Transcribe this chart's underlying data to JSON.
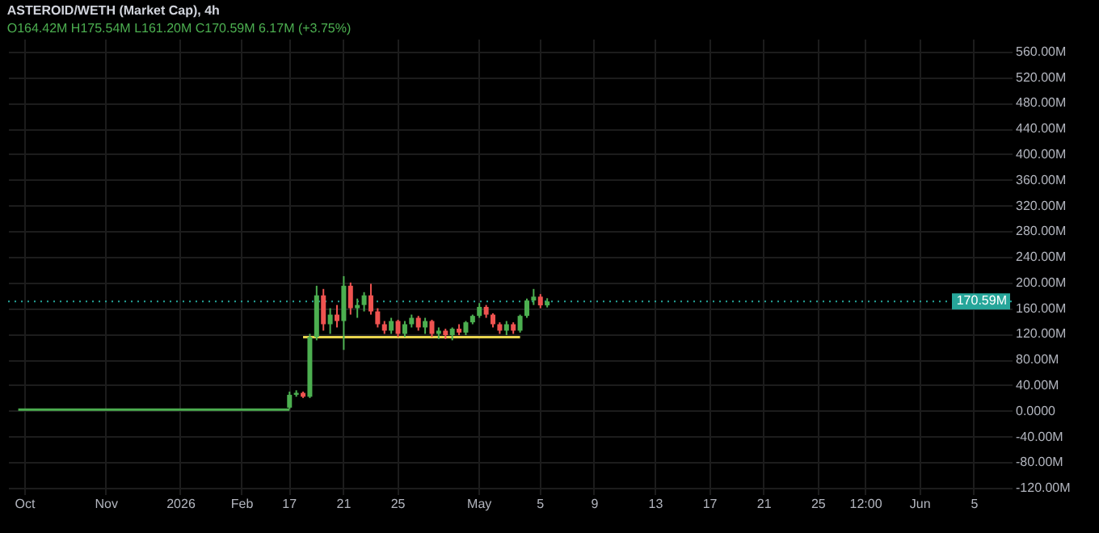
{
  "chart_data": {
    "type": "candlestick",
    "title": "ASTEROID/WETH (Market Cap), 4h",
    "annotations": [
      "O164.42M H175.54M L161.20M C170.59M 6.17M (+3.75%)"
    ],
    "categories": [
      null,
      null,
      "Oct",
      null,
      null,
      null,
      null,
      null,
      null,
      null,
      null,
      null,
      null,
      null,
      "Nov",
      null,
      null,
      null,
      null,
      null,
      null,
      null,
      null,
      null,
      null,
      "2026",
      null,
      null,
      null,
      null,
      null,
      null,
      null,
      null,
      "Feb",
      null,
      null,
      null,
      null,
      null,
      null,
      "17",
      null,
      null,
      null,
      null,
      null,
      null,
      null,
      "21",
      null,
      null,
      null,
      null,
      null,
      null,
      null,
      "25",
      null,
      null,
      null,
      null,
      null,
      null,
      null,
      null,
      null,
      null,
      null,
      "May",
      null,
      null,
      null,
      null,
      null,
      null,
      null,
      null,
      "5",
      null,
      null,
      null,
      null,
      null,
      null,
      null,
      "9",
      null,
      null,
      null,
      null,
      null,
      null,
      null,
      null,
      "13",
      null,
      null,
      null,
      null,
      null,
      null,
      null,
      "17",
      null,
      null,
      null,
      null,
      null,
      null,
      null,
      "21",
      null,
      null,
      null,
      null,
      null,
      null,
      null,
      "25",
      null,
      null,
      null,
      null,
      null,
      null,
      "12:00",
      null,
      null,
      null,
      null,
      null,
      null,
      null,
      "Jun",
      null,
      null,
      null,
      null,
      null,
      null,
      null,
      "5",
      null,
      null,
      null,
      null,
      null
    ],
    "ohlc": [
      null,
      null,
      null,
      null,
      null,
      null,
      null,
      null,
      null,
      null,
      null,
      null,
      null,
      null,
      null,
      null,
      null,
      null,
      null,
      null,
      null,
      null,
      null,
      null,
      null,
      null,
      null,
      null,
      null,
      null,
      null,
      null,
      null,
      null,
      null,
      null,
      null,
      null,
      null,
      null,
      null,
      [
        5,
        30,
        3,
        25
      ],
      [
        25,
        32,
        22,
        28
      ],
      [
        28,
        30,
        20,
        22
      ],
      [
        22,
        120,
        20,
        115
      ],
      [
        115,
        195,
        110,
        180
      ],
      [
        180,
        190,
        125,
        135
      ],
      [
        135,
        160,
        120,
        150
      ],
      [
        150,
        165,
        130,
        140
      ],
      [
        140,
        210,
        95,
        195
      ],
      [
        195,
        200,
        150,
        160
      ],
      [
        160,
        175,
        145,
        165
      ],
      [
        165,
        185,
        155,
        180
      ],
      [
        180,
        198,
        150,
        155
      ],
      [
        155,
        160,
        130,
        135
      ],
      [
        135,
        140,
        120,
        125
      ],
      [
        125,
        145,
        120,
        140
      ],
      [
        140,
        142,
        115,
        120
      ],
      [
        120,
        140,
        115,
        135
      ],
      [
        135,
        150,
        130,
        145
      ],
      [
        145,
        148,
        125,
        130
      ],
      [
        130,
        145,
        120,
        140
      ],
      [
        140,
        142,
        115,
        120
      ],
      [
        120,
        130,
        112,
        125
      ],
      [
        125,
        128,
        112,
        118
      ],
      [
        118,
        130,
        110,
        128
      ],
      [
        128,
        135,
        118,
        122
      ],
      [
        122,
        140,
        118,
        138
      ],
      [
        138,
        150,
        135,
        148
      ],
      [
        148,
        168,
        145,
        162
      ],
      [
        162,
        165,
        145,
        150
      ],
      [
        150,
        152,
        130,
        135
      ],
      [
        135,
        138,
        120,
        125
      ],
      [
        125,
        140,
        118,
        135
      ],
      [
        135,
        138,
        120,
        125
      ],
      [
        125,
        150,
        122,
        148
      ],
      [
        148,
        175,
        145,
        172
      ],
      [
        172,
        190,
        165,
        178
      ],
      [
        178,
        182,
        160,
        164.42
      ],
      [
        164.42,
        175.54,
        161.2,
        170.59
      ],
      null,
      null,
      null,
      null,
      null,
      null,
      null,
      null,
      null,
      null,
      null,
      null,
      null,
      null,
      null,
      null,
      null,
      null,
      null,
      null,
      null,
      null,
      null,
      null,
      null,
      null,
      null,
      null,
      null,
      null,
      null,
      null,
      null,
      null,
      null,
      null,
      null,
      null,
      null,
      null,
      null,
      null,
      null,
      null,
      null,
      null,
      null,
      null,
      null,
      null,
      null,
      null,
      null,
      null,
      null,
      null,
      null,
      null,
      null,
      null,
      null,
      null,
      null,
      null,
      null,
      null,
      null,
      null
    ],
    "colors": [
      null,
      null,
      null,
      null,
      null,
      null,
      null,
      null,
      null,
      null,
      null,
      null,
      null,
      null,
      null,
      null,
      null,
      null,
      null,
      null,
      null,
      null,
      null,
      null,
      null,
      null,
      null,
      null,
      null,
      null,
      null,
      null,
      null,
      null,
      null,
      null,
      null,
      null,
      null,
      null,
      null,
      "#4caf50",
      "#4caf50",
      "#ef5350",
      "#4caf50",
      "#4caf50",
      "#ef5350",
      "#4caf50",
      "#ef5350",
      "#4caf50",
      "#ef5350",
      "#4caf50",
      "#4caf50",
      "#ef5350",
      "#ef5350",
      "#ef5350",
      "#4caf50",
      "#ef5350",
      "#4caf50",
      "#4caf50",
      "#ef5350",
      "#4caf50",
      "#ef5350",
      "#4caf50",
      "#ef5350",
      "#4caf50",
      "#ef5350",
      "#4caf50",
      "#4caf50",
      "#4caf50",
      "#ef5350",
      "#ef5350",
      "#ef5350",
      "#4caf50",
      "#ef5350",
      "#4caf50",
      "#4caf50",
      "#4caf50",
      "#ef5350",
      "#4caf50",
      null,
      null,
      null,
      null,
      null,
      null,
      null,
      null,
      null,
      null,
      null,
      null,
      null,
      null,
      null,
      null,
      null,
      null,
      null,
      null,
      null,
      null,
      null,
      null,
      null,
      null,
      null,
      null,
      null,
      null,
      null,
      null,
      null,
      null,
      null,
      null,
      null,
      null,
      null,
      null,
      null,
      null,
      null,
      null,
      null,
      null,
      null,
      null,
      null,
      null,
      null,
      null,
      null,
      null,
      null,
      null,
      null,
      null,
      null,
      null,
      null,
      null,
      null,
      null,
      null,
      null,
      null,
      null
    ],
    "series": [
      {
        "type": "line",
        "color": "#4caf50",
        "values": [
          null,
          2,
          2,
          2,
          2,
          2,
          2,
          2,
          2,
          2,
          2,
          2,
          2,
          2,
          2,
          2,
          2,
          2,
          2,
          2,
          2,
          2,
          2,
          2,
          2,
          2,
          2,
          2,
          2,
          2,
          2,
          2,
          2,
          2,
          2,
          2,
          2,
          2,
          2,
          2,
          2,
          2,
          null,
          null,
          null,
          null,
          null,
          null,
          null,
          null,
          null,
          null,
          null,
          null,
          null,
          null,
          null,
          null,
          null,
          null,
          null,
          null,
          null,
          null,
          null,
          null,
          null,
          null,
          null,
          null,
          null,
          null,
          null,
          null,
          null,
          null,
          null,
          null,
          null,
          null,
          null,
          null,
          null,
          null,
          null,
          null,
          null,
          null,
          null,
          null,
          null,
          null,
          null,
          null,
          null,
          null,
          null,
          null,
          null,
          null,
          null,
          null,
          null,
          null,
          null,
          null,
          null,
          null,
          null,
          null,
          null,
          null,
          null,
          null,
          null,
          null,
          null,
          null,
          null,
          null,
          null,
          null,
          null,
          null,
          null,
          null,
          null,
          null,
          null,
          null,
          null,
          null,
          null,
          null,
          null,
          null,
          null,
          null,
          null,
          null,
          null,
          null,
          null,
          null,
          null,
          null,
          null,
          null
        ]
      },
      {
        "type": "line",
        "color": "#e8d44d",
        "values": [
          null,
          null,
          null,
          null,
          null,
          null,
          null,
          null,
          null,
          null,
          null,
          null,
          null,
          null,
          null,
          null,
          null,
          null,
          null,
          null,
          null,
          null,
          null,
          null,
          null,
          null,
          null,
          null,
          null,
          null,
          null,
          null,
          null,
          null,
          null,
          null,
          null,
          null,
          null,
          null,
          null,
          null,
          null,
          115,
          115,
          115,
          115,
          115,
          115,
          115,
          115,
          115,
          115,
          115,
          115,
          115,
          115,
          115,
          115,
          115,
          115,
          115,
          115,
          115,
          115,
          115,
          115,
          115,
          115,
          115,
          115,
          115,
          115,
          115,
          115,
          115,
          null,
          null,
          null,
          null,
          null,
          null,
          null,
          null,
          null,
          null,
          null,
          null,
          null,
          null,
          null,
          null,
          null,
          null,
          null,
          null,
          null,
          null,
          null,
          null,
          null,
          null,
          null,
          null,
          null,
          null,
          null,
          null,
          null,
          null,
          null,
          null,
          null,
          null,
          null,
          null,
          null,
          null,
          null,
          null,
          null,
          null,
          null,
          null,
          null,
          null,
          null,
          null,
          null,
          null,
          null,
          null,
          null,
          null,
          null,
          null,
          null,
          null,
          null,
          null,
          null,
          null,
          null,
          null,
          null,
          null,
          null,
          null
        ]
      }
    ],
    "ref_lines": [
      {
        "axis": "y",
        "value": 170.59,
        "label": "170.59M",
        "color": "#26a69a",
        "line_style": "dotted"
      }
    ],
    "ylim": [
      -130,
      580
    ],
    "yticks": [
      {
        "value": -120,
        "label": "-120.00M"
      },
      {
        "value": -80,
        "label": "-80.00M"
      },
      {
        "value": -40,
        "label": "-40.00M"
      },
      {
        "value": 0,
        "label": "0.0000"
      },
      {
        "value": 40,
        "label": "40.00M"
      },
      {
        "value": 80,
        "label": "80.00M"
      },
      {
        "value": 120,
        "label": "120.00M"
      },
      {
        "value": 160,
        "label": "160.00M"
      },
      {
        "value": 200,
        "label": "200.00M"
      },
      {
        "value": 240,
        "label": "240.00M"
      },
      {
        "value": 280,
        "label": "280.00M"
      },
      {
        "value": 320,
        "label": "320.00M"
      },
      {
        "value": 360,
        "label": "360.00M"
      },
      {
        "value": 400,
        "label": "400.00M"
      },
      {
        "value": 440,
        "label": "440.00M"
      },
      {
        "value": 480,
        "label": "480.00M"
      },
      {
        "value": 520,
        "label": "520.00M"
      },
      {
        "value": 560,
        "label": "560.00M"
      }
    ],
    "grid": true
  }
}
